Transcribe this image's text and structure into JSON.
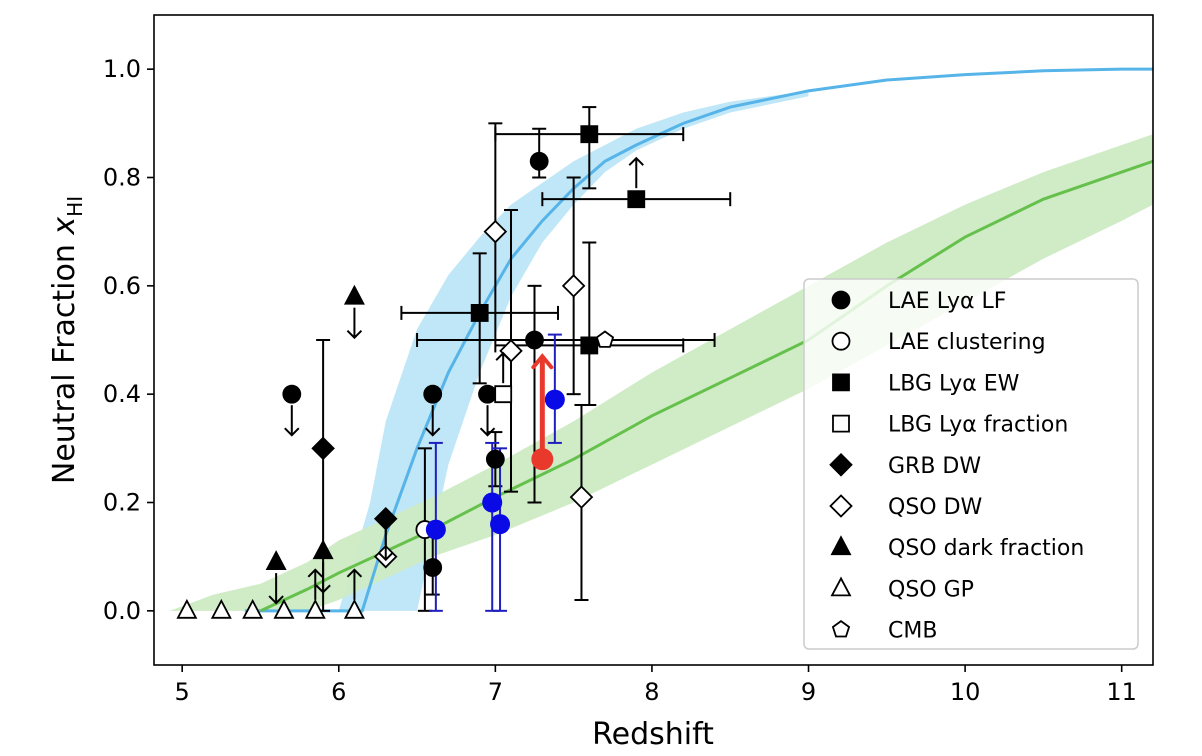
{
  "chart_data": {
    "type": "scatter",
    "title": "",
    "xlabel": "Redshift",
    "ylabel_main": "Neutral Fraction ",
    "ylabel_symbol": "x",
    "ylabel_sub": "HI",
    "xlim": [
      4.82,
      11.2
    ],
    "ylim": [
      -0.1,
      1.1
    ],
    "xticks": [
      5,
      6,
      7,
      8,
      9,
      10,
      11
    ],
    "yticks": [
      0.0,
      0.2,
      0.4,
      0.6,
      0.8,
      1.0
    ],
    "ytick_labels": [
      "0.0",
      "0.2",
      "0.4",
      "0.6",
      "0.8",
      "1.0"
    ],
    "legend_position": "lower-right",
    "colors": {
      "model_blue": "#56b4e9",
      "model_blue_band": "#bde6f7",
      "model_green": "#66c04c",
      "model_green_band": "#cdebc4",
      "new_measurement": "#e8392c",
      "blue_points": "#0a0ae6",
      "blue_errors": "#1f1fbf",
      "black": "#000000"
    },
    "models": [
      {
        "name": "blue model",
        "color_key": "model_blue",
        "band_color_key": "model_blue_band",
        "x": [
          5.4,
          6.0,
          6.15,
          6.3,
          6.5,
          6.7,
          6.9,
          7.1,
          7.3,
          7.5,
          7.7,
          7.9,
          8.2,
          8.5,
          9.0,
          9.5,
          10.0,
          10.5,
          11.0,
          11.2
        ],
        "y": [
          0.0,
          0.0,
          0.0,
          0.14,
          0.3,
          0.44,
          0.55,
          0.65,
          0.72,
          0.78,
          0.83,
          0.86,
          0.9,
          0.93,
          0.96,
          0.98,
          0.99,
          0.997,
          1.0,
          1.0
        ],
        "band_x": [
          6.0,
          6.2,
          6.3,
          6.5,
          6.7,
          6.9,
          7.1,
          7.3,
          7.5,
          7.7,
          7.9,
          8.2,
          8.5,
          9.0
        ],
        "band_lo": [
          0.0,
          0.0,
          0.0,
          0.0,
          0.27,
          0.44,
          0.58,
          0.68,
          0.75,
          0.81,
          0.85,
          0.89,
          0.92,
          0.95
        ],
        "band_hi": [
          0.0,
          0.2,
          0.35,
          0.52,
          0.62,
          0.69,
          0.75,
          0.79,
          0.83,
          0.86,
          0.89,
          0.92,
          0.94,
          0.96
        ]
      },
      {
        "name": "green model",
        "color_key": "model_green",
        "band_color_key": "model_green_band",
        "x": [
          5.5,
          5.8,
          6.0,
          6.3,
          6.6,
          7.0,
          7.5,
          8.0,
          8.5,
          9.0,
          9.5,
          10.0,
          10.5,
          11.0,
          11.2
        ],
        "y": [
          0.0,
          0.04,
          0.07,
          0.11,
          0.15,
          0.21,
          0.28,
          0.36,
          0.43,
          0.5,
          0.6,
          0.69,
          0.76,
          0.81,
          0.83
        ],
        "band_x": [
          4.92,
          5.2,
          5.5,
          5.8,
          6.0,
          6.3,
          6.6,
          7.0,
          7.5,
          8.0,
          8.5,
          9.0,
          9.5,
          10.0,
          10.5,
          11.0,
          11.2
        ],
        "band_lo": [
          0.0,
          0.0,
          0.0,
          0.0,
          0.02,
          0.06,
          0.1,
          0.14,
          0.2,
          0.27,
          0.34,
          0.41,
          0.49,
          0.57,
          0.65,
          0.72,
          0.75
        ],
        "band_hi": [
          0.0,
          0.03,
          0.05,
          0.09,
          0.13,
          0.17,
          0.21,
          0.27,
          0.35,
          0.44,
          0.52,
          0.6,
          0.68,
          0.75,
          0.81,
          0.86,
          0.88
        ]
      }
    ],
    "points": [
      {
        "series": "LAE Lyα LF",
        "marker": "circle",
        "fill": "black",
        "x": 5.7,
        "y": 0.4,
        "arrow": "down"
      },
      {
        "series": "LAE Lyα LF",
        "marker": "circle",
        "fill": "black",
        "x": 6.6,
        "y": 0.4,
        "arrow": "down"
      },
      {
        "series": "LAE Lyα LF",
        "marker": "circle",
        "fill": "black",
        "x": 6.6,
        "y": 0.08,
        "y_err": [
          0.05,
          0.08
        ]
      },
      {
        "series": "LAE Lyα LF",
        "marker": "circle",
        "fill": "black",
        "x": 6.95,
        "y": 0.4,
        "arrow": "down"
      },
      {
        "series": "LAE Lyα LF",
        "marker": "circle",
        "fill": "black",
        "x": 7.0,
        "y": 0.28,
        "y_err": [
          0.05,
          0.05
        ]
      },
      {
        "series": "LAE Lyα LF",
        "marker": "circle",
        "fill": "black",
        "x": 7.25,
        "y": 0.5,
        "y_err": [
          0.3,
          0.1
        ]
      },
      {
        "series": "LAE Lyα LF",
        "marker": "circle",
        "fill": "black",
        "x": 7.28,
        "y": 0.83,
        "y_err": [
          0.03,
          0.06
        ]
      },
      {
        "series": "LAE clustering",
        "marker": "circle",
        "fill": "white",
        "x": 6.55,
        "y": 0.15,
        "y_err": [
          0.15,
          0.15
        ]
      },
      {
        "series": "LBG Lyα EW",
        "marker": "square",
        "fill": "black",
        "x": 6.9,
        "y": 0.55,
        "y_err": [
          0.13,
          0.11
        ],
        "x_err": [
          0.5,
          0.5
        ]
      },
      {
        "series": "LBG Lyα EW",
        "marker": "square",
        "fill": "black",
        "x": 7.6,
        "y": 0.88,
        "y_err": [
          0.1,
          0.05
        ],
        "x_err": [
          0.6,
          0.6
        ]
      },
      {
        "series": "LBG Lyα EW",
        "marker": "square",
        "fill": "black",
        "x": 7.9,
        "y": 0.76,
        "x_err": [
          0.6,
          0.6
        ],
        "arrow": "up"
      },
      {
        "series": "LBG Lyα EW",
        "marker": "square",
        "fill": "black",
        "x": 7.6,
        "y": 0.49,
        "y_err": [
          0.11,
          0.19
        ],
        "x_err": [
          0.6,
          0.6
        ]
      },
      {
        "series": "LBG Lyα fraction",
        "marker": "square",
        "fill": "white",
        "x": 7.05,
        "y": 0.4,
        "arrow": "up"
      },
      {
        "series": "GRB DW",
        "marker": "diamond",
        "fill": "black",
        "x": 5.9,
        "y": 0.3,
        "y_err": [
          0.3,
          0.2
        ]
      },
      {
        "series": "GRB DW",
        "marker": "diamond",
        "fill": "black",
        "x": 6.3,
        "y": 0.17,
        "arrow": "down"
      },
      {
        "series": "QSO DW",
        "marker": "diamond",
        "fill": "white",
        "x": 6.3,
        "y": 0.1,
        "arrow": "up"
      },
      {
        "series": "QSO DW",
        "marker": "diamond",
        "fill": "white",
        "x": 7.0,
        "y": 0.7,
        "y_err": [
          0.2,
          0.2
        ]
      },
      {
        "series": "QSO DW",
        "marker": "diamond",
        "fill": "white",
        "x": 7.1,
        "y": 0.48,
        "y_err": [
          0.26,
          0.26
        ]
      },
      {
        "series": "QSO DW",
        "marker": "diamond",
        "fill": "white",
        "x": 7.5,
        "y": 0.6,
        "y_err": [
          0.2,
          0.2
        ]
      },
      {
        "series": "QSO DW",
        "marker": "diamond",
        "fill": "white",
        "x": 7.55,
        "y": 0.21,
        "y_err": [
          0.19,
          0.17
        ]
      },
      {
        "series": "QSO dark fraction",
        "marker": "triangle",
        "fill": "black",
        "x": 5.6,
        "y": 0.09,
        "arrow": "down"
      },
      {
        "series": "QSO dark fraction",
        "marker": "triangle",
        "fill": "black",
        "x": 5.9,
        "y": 0.11,
        "arrow": "down"
      },
      {
        "series": "QSO dark fraction",
        "marker": "triangle",
        "fill": "black",
        "x": 6.1,
        "y": 0.58,
        "arrow": "down"
      },
      {
        "series": "QSO GP",
        "marker": "triangle",
        "fill": "white",
        "x": 5.03,
        "y": 0.0
      },
      {
        "series": "QSO GP",
        "marker": "triangle",
        "fill": "white",
        "x": 5.25,
        "y": 0.0
      },
      {
        "series": "QSO GP",
        "marker": "triangle",
        "fill": "white",
        "x": 5.45,
        "y": 0.0
      },
      {
        "series": "QSO GP",
        "marker": "triangle",
        "fill": "white",
        "x": 5.65,
        "y": 0.0
      },
      {
        "series": "QSO GP",
        "marker": "triangle",
        "fill": "white",
        "x": 5.85,
        "y": 0.0,
        "arrow": "up"
      },
      {
        "series": "QSO GP",
        "marker": "triangle",
        "fill": "white",
        "x": 6.1,
        "y": 0.0,
        "arrow": "up"
      },
      {
        "series": "CMB",
        "marker": "pentagon",
        "fill": "white",
        "x": 7.7,
        "y": 0.5,
        "x_err": [
          1.2,
          0.7
        ]
      }
    ],
    "blue_points": [
      {
        "x": 6.62,
        "y": 0.15,
        "y_err": [
          0.15,
          0.16
        ]
      },
      {
        "x": 6.98,
        "y": 0.2,
        "y_err": [
          0.2,
          0.11
        ]
      },
      {
        "x": 7.03,
        "y": 0.16,
        "y_err": [
          0.16,
          0.14
        ]
      },
      {
        "x": 7.38,
        "y": 0.39,
        "y_err": [
          0.08,
          0.12
        ]
      }
    ],
    "highlight_point": {
      "x": 7.3,
      "y": 0.28,
      "arrow": "up",
      "arrow_to": 0.47
    },
    "legend": [
      {
        "label": "LAE Lyα LF",
        "marker": "circle",
        "fill": "black"
      },
      {
        "label": "LAE clustering",
        "marker": "circle",
        "fill": "white"
      },
      {
        "label": "LBG Lyα EW",
        "marker": "square",
        "fill": "black"
      },
      {
        "label": "LBG Lyα fraction",
        "marker": "square",
        "fill": "white"
      },
      {
        "label": "GRB DW",
        "marker": "diamond",
        "fill": "black"
      },
      {
        "label": "QSO DW",
        "marker": "diamond",
        "fill": "white"
      },
      {
        "label": "QSO dark fraction",
        "marker": "triangle",
        "fill": "black"
      },
      {
        "label": "QSO GP",
        "marker": "triangle",
        "fill": "white"
      },
      {
        "label": "CMB",
        "marker": "pentagon",
        "fill": "white"
      }
    ]
  }
}
